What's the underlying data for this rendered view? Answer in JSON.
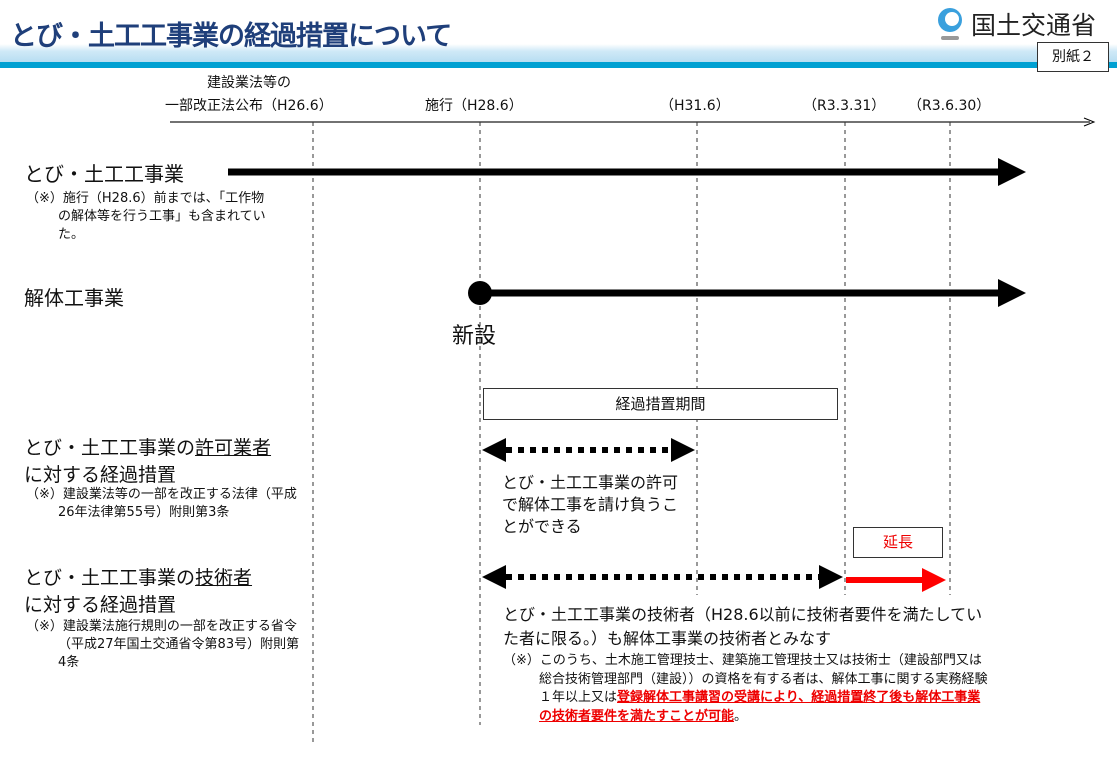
{
  "header": {
    "title": "とび・土工工事業の経過措置について",
    "ministry": "国土交通省",
    "attachment": "別紙２"
  },
  "timeline": {
    "labels": [
      {
        "line1": "建設業法等の",
        "line2": "一部改正法公布（H26.6）"
      },
      {
        "line2": "施行（H28.6）"
      },
      {
        "line2": "（H31.6）"
      },
      {
        "line2": "（R3.3.31）"
      },
      {
        "line2": "（R3.6.30）"
      }
    ]
  },
  "rows": {
    "tobi": {
      "title": "とび・土工工事業",
      "note": "（※）施行（H28.6）前までは、「工作物の解体等を行う工事」も含まれていた。"
    },
    "kaitai": {
      "title": "解体工事業",
      "new_label": "新設"
    },
    "period_label": "経過措置期間",
    "permit": {
      "title_a": "とび・土工工事業の",
      "title_u": "許可業者",
      "title_b": "に対する経過措置",
      "note": "（※）建設業法等の一部を改正する法律（平成26年法律第55号）附則第3条",
      "desc": "とび・土工工事業の許可で解体工事を請け負うことができる"
    },
    "engineer": {
      "title_a": "とび・土工工事業の",
      "title_u": "技術者",
      "title_b": "に対する経過措置",
      "note": "（※）建設業法施行規則の一部を改正する省令（平成27年国土交通省令第83号）附則第4条",
      "extension": "延長",
      "desc": "とび・土工工事業の技術者（H28.6以前に技術者要件を満たしていた者に限る。）も解体工事業の技術者とみなす",
      "sub_note": "（※）このうち、土木施工管理技士、建築施工管理技士又は技術士（建設部門又は総合技術管理部門（建設））の資格を有する者は、解体工事に関する実務経験１年以上又は",
      "sub_note_red": "登録解体工事講習の受講により、経過措置終了後も解体工事業の技術者要件を満たすことが可能",
      "sub_note_end": "。"
    }
  },
  "colors": {
    "accent": "#00a0d2",
    "title": "#1f3f7a",
    "extension": "#ff0000"
  }
}
